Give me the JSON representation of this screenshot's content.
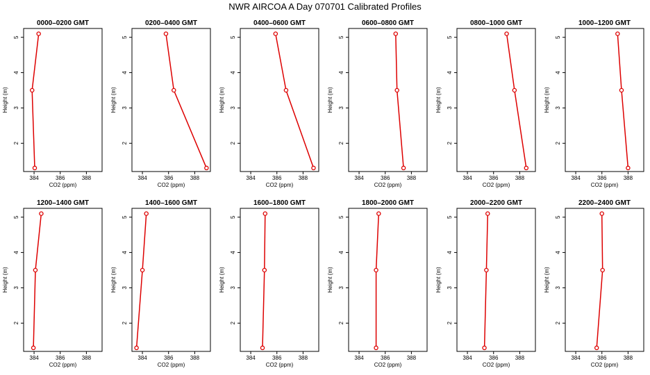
{
  "chart_data": {
    "type": "line",
    "title": "NWR AIRCOA A  Day 070701  Calibrated Profiles",
    "xlabel": "CO2 (ppm)",
    "ylabel": "Height (m)",
    "xlim": [
      383.2,
      389.2
    ],
    "ylim": [
      1.2,
      5.25
    ],
    "x_ticks": [
      384,
      386,
      388
    ],
    "x_tick_labels": [
      "384",
      "386",
      "388"
    ],
    "y_ticks": [
      2,
      3,
      4,
      5
    ],
    "y_tick_labels": [
      "2",
      "3",
      "4",
      "5"
    ],
    "heights": [
      5.1,
      3.5,
      1.3
    ],
    "line_color": "#dd0000",
    "panels": [
      {
        "title": "0000–0200 GMT",
        "co2": [
          384.35,
          383.85,
          384.05
        ]
      },
      {
        "title": "0200–0400 GMT",
        "co2": [
          385.8,
          386.4,
          388.9
        ]
      },
      {
        "title": "0400–0600 GMT",
        "co2": [
          385.9,
          386.7,
          388.8
        ]
      },
      {
        "title": "0600–0800 GMT",
        "co2": [
          386.8,
          386.9,
          387.4
        ]
      },
      {
        "title": "0800–1000 GMT",
        "co2": [
          387.0,
          387.6,
          388.5
        ]
      },
      {
        "title": "1000–1200 GMT",
        "co2": [
          387.2,
          387.5,
          388.0
        ]
      },
      {
        "title": "1200–1400 GMT",
        "co2": [
          384.55,
          384.1,
          383.95
        ]
      },
      {
        "title": "1400–1600 GMT",
        "co2": [
          384.3,
          384.0,
          383.55
        ]
      },
      {
        "title": "1600–1800 GMT",
        "co2": [
          385.1,
          385.05,
          384.9
        ]
      },
      {
        "title": "1800–2000 GMT",
        "co2": [
          385.5,
          385.3,
          385.3
        ]
      },
      {
        "title": "2000–2200 GMT",
        "co2": [
          385.55,
          385.45,
          385.3
        ]
      },
      {
        "title": "2200–2400 GMT",
        "co2": [
          386.0,
          386.05,
          385.6
        ]
      }
    ]
  }
}
